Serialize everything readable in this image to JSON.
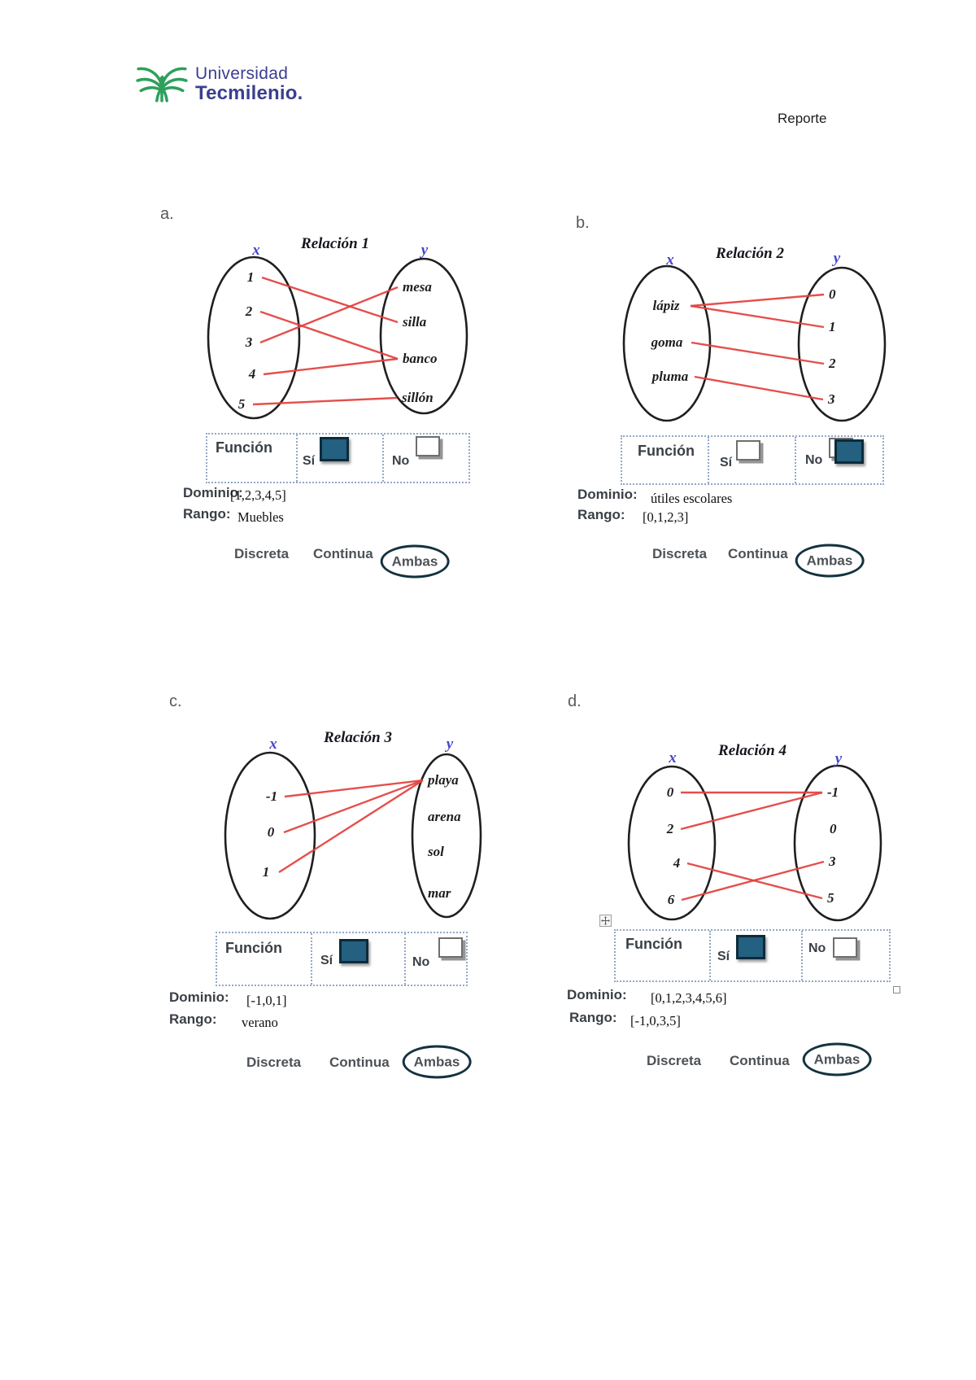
{
  "header": {
    "logo_line1": "Universidad",
    "logo_line2": "Tecmilenio.",
    "report_label": "Reporte"
  },
  "labels": {
    "funcion": "Función",
    "si": "Sí",
    "no": "No",
    "dominio": "Dominio:",
    "rango": "Rango:",
    "discreta": "Discreta",
    "continua": "Continua",
    "ambas": "Ambas"
  },
  "colors": {
    "checkbox_teal": "#24607F",
    "checkbox_border": "#0D2B3B",
    "relation_line_red": "#E2413D",
    "axis_label_blue": "#4646CE",
    "ambas_circle_navy": "#14323F",
    "logo_green": "#2EA05C",
    "logo_navy": "#3A3F8F"
  },
  "sections": [
    {
      "id": "a",
      "item_label": "a.",
      "title": "Relación 1",
      "x_label": "x",
      "y_label": "y",
      "left_items": [
        "1",
        "2",
        "3",
        "4",
        "5"
      ],
      "right_items": [
        "mesa",
        "silla",
        "banco",
        "sillón"
      ],
      "connections": [
        [
          0,
          1
        ],
        [
          1,
          2
        ],
        [
          2,
          0
        ],
        [
          3,
          2
        ],
        [
          4,
          3
        ]
      ],
      "funcion_si": "checked",
      "funcion_no": "unchecked",
      "dominio": "[1,2,3,4,5]",
      "rango": "Muebles",
      "circled_option": "Ambas"
    },
    {
      "id": "b",
      "item_label": "b.",
      "title": "Relación 2",
      "x_label": "x",
      "y_label": "y",
      "left_items": [
        "lápiz",
        "goma",
        "pluma"
      ],
      "right_items": [
        "0",
        "1",
        "2",
        "3"
      ],
      "connections": [
        [
          0,
          0
        ],
        [
          0,
          1
        ],
        [
          1,
          2
        ],
        [
          2,
          3
        ]
      ],
      "funcion_si": "unchecked",
      "funcion_no": "checked-overlap",
      "dominio": "útiles escolares",
      "rango": "[0,1,2,3]",
      "circled_option": "Ambas"
    },
    {
      "id": "c",
      "item_label": "c.",
      "title": "Relación 3",
      "x_label": "x",
      "y_label": "y",
      "left_items": [
        "-1",
        "0",
        "1"
      ],
      "right_items": [
        "playa",
        "arena",
        "sol",
        "mar"
      ],
      "connections": [
        [
          0,
          0
        ],
        [
          1,
          0
        ],
        [
          2,
          0
        ]
      ],
      "funcion_si": "checked",
      "funcion_no": "unchecked",
      "dominio": "[-1,0,1]",
      "rango": "verano",
      "circled_option": "Ambas"
    },
    {
      "id": "d",
      "item_label": "d.",
      "title": "Relación 4",
      "x_label": "x",
      "y_label": "y",
      "left_items": [
        "0",
        "2",
        "4",
        "6"
      ],
      "right_items": [
        "-1",
        "0",
        "3",
        "5"
      ],
      "connections": [
        [
          0,
          0
        ],
        [
          1,
          0
        ],
        [
          2,
          3
        ],
        [
          3,
          2
        ]
      ],
      "funcion_si": "checked",
      "funcion_no": "unchecked",
      "dominio": "[0,1,2,3,4,5,6]",
      "rango": "[-1,0,3,5]",
      "circled_option": "Ambas"
    }
  ]
}
